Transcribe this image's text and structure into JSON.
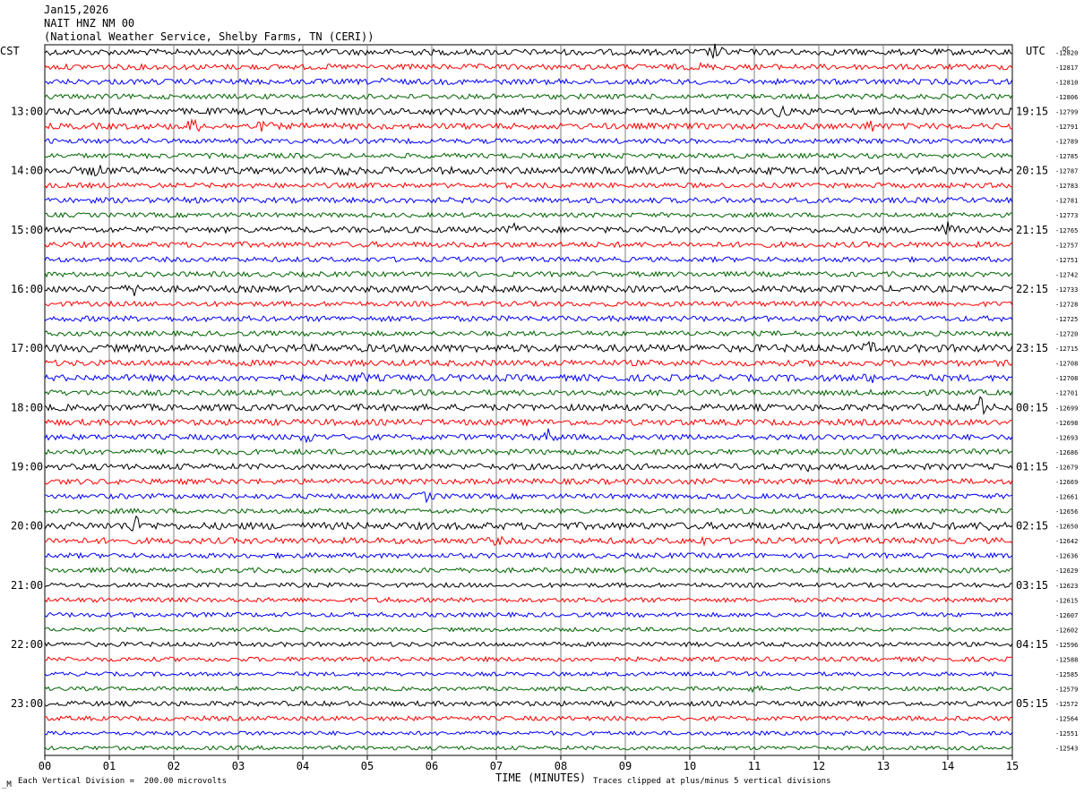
{
  "header": {
    "date": "Jan15,2026",
    "station": "NAIT HNZ NM 00",
    "agency": "(National Weather Service, Shelby Farms, TN (CERI))"
  },
  "left_timezone": "CST",
  "right_timezone": "UTC",
  "dc_label": "DC",
  "footer": {
    "scale_note": "Each Vertical Division =  200.00 microvolts",
    "x_title": "TIME (MINUTES)",
    "clip_note": "Traces clipped at plus/minus 5 vertical divisions",
    "corner_mark": "_M"
  },
  "colors": {
    "cycle": [
      "#000000",
      "#ff0000",
      "#0000ff",
      "#006400"
    ],
    "grid": "#7f7f7f",
    "background": "#ffffff"
  },
  "chart_data": {
    "type": "line",
    "title": "NAIT HNZ NM 00",
    "xlabel": "TIME (MINUTES)",
    "ylabel": "",
    "xlim": [
      0,
      15
    ],
    "x_ticks": [
      "00",
      "01",
      "02",
      "03",
      "04",
      "05",
      "06",
      "07",
      "08",
      "09",
      "10",
      "11",
      "12",
      "13",
      "14",
      "15"
    ],
    "row_minutes": 15,
    "trace_count": 48,
    "left_hour_labels": [
      {
        "row": 4,
        "label": "13:00"
      },
      {
        "row": 8,
        "label": "14:00"
      },
      {
        "row": 12,
        "label": "15:00"
      },
      {
        "row": 16,
        "label": "16:00"
      },
      {
        "row": 20,
        "label": "17:00"
      },
      {
        "row": 24,
        "label": "18:00"
      },
      {
        "row": 28,
        "label": "19:00"
      },
      {
        "row": 32,
        "label": "20:00"
      },
      {
        "row": 36,
        "label": "21:00"
      },
      {
        "row": 40,
        "label": "22:00"
      },
      {
        "row": 44,
        "label": "23:00"
      }
    ],
    "right_hour_labels": [
      {
        "row": 4,
        "label": "19:15"
      },
      {
        "row": 8,
        "label": "20:15"
      },
      {
        "row": 12,
        "label": "21:15"
      },
      {
        "row": 16,
        "label": "22:15"
      },
      {
        "row": 20,
        "label": "23:15"
      },
      {
        "row": 24,
        "label": "00:15"
      },
      {
        "row": 28,
        "label": "01:15"
      },
      {
        "row": 32,
        "label": "02:15"
      },
      {
        "row": 36,
        "label": "03:15"
      },
      {
        "row": 40,
        "label": "04:15"
      },
      {
        "row": 44,
        "label": "05:15"
      }
    ],
    "dc_offsets": [
      "-12820",
      "-12817",
      "-12810",
      "-12806",
      "-12799",
      "-12791",
      "-12789",
      "-12785",
      "-12787",
      "-12783",
      "-12781",
      "-12773",
      "-12765",
      "-12757",
      "-12751",
      "-12742",
      "-12733",
      "-12728",
      "-12725",
      "-12720",
      "-12715",
      "-12708",
      "-12708",
      "-12701",
      "-12699",
      "-12698",
      "-12693",
      "-12686",
      "-12679",
      "-12669",
      "-12661",
      "-12656",
      "-12650",
      "-12642",
      "-12636",
      "-12629",
      "-12623",
      "-12615",
      "-12607",
      "-12602",
      "-12596",
      "-12588",
      "-12585",
      "-12579",
      "-12572",
      "-12564",
      "-12551",
      "-12543"
    ],
    "series": [
      {
        "values": [
          1.2,
          1.1,
          1.1,
          1.0,
          1.3,
          1.2,
          1.0,
          1.0,
          1.4,
          1.0,
          1.1,
          0.9,
          1.2,
          1.1,
          1.0,
          1.0,
          1.3,
          1.0,
          1.1,
          1.0,
          1.5,
          1.2,
          1.3,
          1.1,
          1.3,
          1.2,
          1.1,
          1.1,
          1.2,
          1.1,
          1.0,
          1.0,
          1.4,
          1.2,
          1.0,
          1.0,
          0.9,
          0.9,
          0.9,
          0.8,
          0.9,
          0.9,
          0.8,
          0.8,
          1.0,
          0.9,
          0.8,
          0.8
        ]
      }
    ],
    "events": [
      {
        "row": 0,
        "minute": 10.4,
        "amplitude": 3.5
      },
      {
        "row": 1,
        "minute": 10.2,
        "amplitude": 2.0
      },
      {
        "row": 2,
        "minute": 5.3,
        "amplitude": 2.0
      },
      {
        "row": 5,
        "minute": 2.3,
        "amplitude": 3.5
      },
      {
        "row": 5,
        "minute": 3.4,
        "amplitude": 2.5
      },
      {
        "row": 4,
        "minute": 11.4,
        "amplitude": 2.5
      },
      {
        "row": 5,
        "minute": 12.8,
        "amplitude": 2.5
      },
      {
        "row": 8,
        "minute": 0.8,
        "amplitude": 2.5
      },
      {
        "row": 8,
        "minute": 4.6,
        "amplitude": 2.5
      },
      {
        "row": 12,
        "minute": 7.3,
        "amplitude": 3.0
      },
      {
        "row": 12,
        "minute": 14.0,
        "amplitude": 3.5
      },
      {
        "row": 16,
        "minute": 1.4,
        "amplitude": 2.5
      },
      {
        "row": 20,
        "minute": 12.8,
        "amplitude": 2.0
      },
      {
        "row": 21,
        "minute": 12.1,
        "amplitude": 2.0
      },
      {
        "row": 22,
        "minute": 4.9,
        "amplitude": 2.0
      },
      {
        "row": 22,
        "minute": 12.8,
        "amplitude": 2.0
      },
      {
        "row": 24,
        "minute": 14.5,
        "amplitude": 4.0
      },
      {
        "row": 26,
        "minute": 4.1,
        "amplitude": 3.0
      },
      {
        "row": 26,
        "minute": 7.8,
        "amplitude": 3.5
      },
      {
        "row": 28,
        "minute": 11.8,
        "amplitude": 2.0
      },
      {
        "row": 30,
        "minute": 5.9,
        "amplitude": 3.0
      },
      {
        "row": 32,
        "minute": 1.4,
        "amplitude": 3.5
      },
      {
        "row": 32,
        "minute": 14.6,
        "amplitude": 2.0
      },
      {
        "row": 33,
        "minute": 7.0,
        "amplitude": 2.0
      },
      {
        "row": 33,
        "minute": 10.2,
        "amplitude": 2.0
      },
      {
        "row": 37,
        "minute": 5.3,
        "amplitude": 2.0
      },
      {
        "row": 43,
        "minute": 11.0,
        "amplitude": 2.0
      }
    ]
  }
}
